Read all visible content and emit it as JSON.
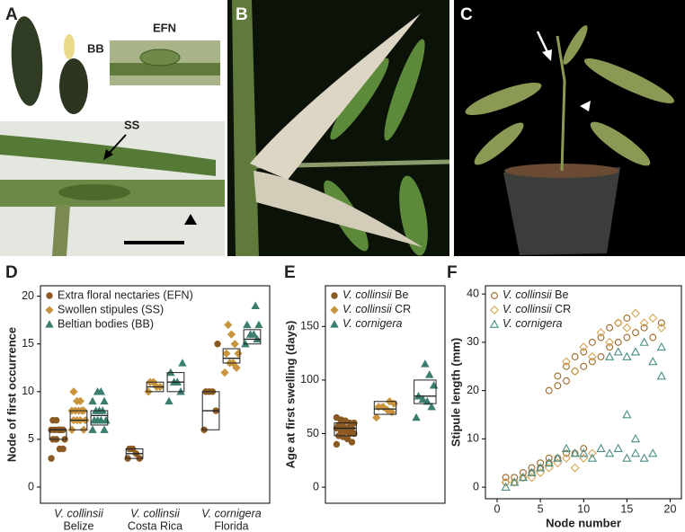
{
  "photos": {
    "A": {
      "letter": "A",
      "bb": "BB",
      "efn": "EFN",
      "ss": "SS"
    },
    "B": {
      "letter": "B"
    },
    "C": {
      "letter": "C"
    }
  },
  "chart_data": [
    {
      "panel": "D",
      "type": "box",
      "ylabel": "Node of first occurrence",
      "categories": [
        "V. collinsii",
        "V. collinsii",
        "V. cornigera"
      ],
      "subcategories": [
        "Belize",
        "Costa Rica",
        "Florida"
      ],
      "ylim": [
        -1.7,
        21.1
      ],
      "yticks": [
        0,
        5,
        10,
        15,
        20
      ],
      "legend": "upper left",
      "series": [
        {
          "name": "Extra floral nectaries (EFN)",
          "color": "#8a5a22",
          "marker": "circle",
          "filled": true,
          "values": [
            [
              3,
              4,
              4,
              5,
              5,
              5,
              6,
              6,
              6,
              6,
              6,
              6,
              7,
              7
            ],
            [
              3,
              3,
              3.5,
              4,
              4
            ],
            [
              6,
              8,
              10,
              10,
              10,
              15
            ]
          ],
          "boxes": [
            [
              5,
              6,
              6
            ],
            [
              3,
              3.5,
              4
            ],
            [
              6,
              8,
              10
            ]
          ]
        },
        {
          "name": "Swollen stipules (SS)",
          "color": "#c8943c",
          "marker": "diamond",
          "filled": true,
          "values": [
            [
              6,
              6,
              7,
              7,
              7,
              7,
              8,
              8,
              8,
              8,
              8,
              9,
              9,
              10
            ],
            [
              10,
              10.5,
              10.5,
              11,
              11
            ],
            [
              12,
              12.5,
              13,
              13,
              14,
              14,
              15,
              16,
              17
            ]
          ],
          "boxes": [
            [
              6,
              7,
              8
            ],
            [
              10,
              10.5,
              11
            ],
            [
              13,
              13.5,
              14.5
            ]
          ]
        },
        {
          "name": "Beltian bodies (BB)",
          "color": "#3b7e70",
          "marker": "triangle",
          "filled": true,
          "values": [
            [
              6,
              6,
              7,
              7,
              7,
              7,
              8,
              8,
              8,
              9,
              9,
              10,
              10
            ],
            [
              9,
              10,
              11,
              11,
              12,
              13
            ],
            [
              15,
              15.5,
              16,
              16,
              17,
              17,
              19
            ]
          ],
          "boxes": [
            [
              6.5,
              7.5,
              8
            ],
            [
              10,
              11,
              12
            ],
            [
              15,
              15.5,
              16.5
            ]
          ]
        }
      ]
    },
    {
      "panel": "E",
      "type": "box",
      "ylabel": "Age at first swelling (days)",
      "ylim": [
        -15,
        188
      ],
      "yticks": [
        0,
        50,
        100,
        150
      ],
      "legend": "upper left",
      "series": [
        {
          "name": "V. collinsii Be",
          "color": "#8a5a22",
          "marker": "circle",
          "filled": true,
          "values": [
            40,
            42,
            45,
            47,
            48,
            50,
            50,
            52,
            53,
            55,
            55,
            55,
            57,
            58,
            60,
            60,
            62,
            63,
            65
          ],
          "box": [
            48,
            55,
            60
          ]
        },
        {
          "name": "V. collinsii CR",
          "color": "#c8943c",
          "marker": "diamond",
          "filled": true,
          "values": [
            65,
            70,
            72,
            75,
            75,
            78,
            80
          ],
          "box": [
            68,
            73,
            80
          ]
        },
        {
          "name": "V. cornigera",
          "color": "#3b7e70",
          "marker": "triangle",
          "filled": true,
          "values": [
            65,
            75,
            80,
            82,
            85,
            95,
            105,
            115
          ],
          "box": [
            78,
            85,
            100
          ]
        }
      ]
    },
    {
      "panel": "F",
      "type": "scatter",
      "xlabel": "Node number",
      "ylabel": "Stipule length (mm)",
      "xlim": [
        -1.35,
        21.3
      ],
      "xticks": [
        0,
        5,
        10,
        15,
        20
      ],
      "ylim": [
        -2.4,
        41.7
      ],
      "yticks": [
        0,
        10,
        20,
        30,
        40
      ],
      "legend": "upper left",
      "series": [
        {
          "name": "V. collinsii Be",
          "color": "#9a6a2a",
          "marker": "circle",
          "filled": false,
          "x": [
            1,
            1,
            2,
            2,
            3,
            3,
            4,
            4,
            5,
            5,
            6,
            6,
            7,
            8,
            9,
            10,
            6,
            7,
            7,
            8,
            8,
            9,
            9,
            10,
            10,
            11,
            11,
            12,
            12,
            13,
            13,
            14,
            14,
            15,
            15,
            16,
            17,
            18,
            19
          ],
          "y": [
            1,
            2,
            1,
            2,
            2,
            3,
            3,
            4,
            4,
            5,
            5,
            6,
            6,
            7,
            7,
            8,
            20,
            21,
            23,
            22,
            25,
            24,
            27,
            25,
            28,
            26,
            30,
            27,
            31,
            29,
            33,
            30,
            34,
            31,
            35,
            32,
            33,
            31,
            34
          ]
        },
        {
          "name": "V. collinsii CR",
          "color": "#d6a656",
          "marker": "diamond",
          "filled": false,
          "x": [
            1,
            2,
            3,
            4,
            5,
            6,
            7,
            8,
            9,
            10,
            11,
            8,
            9,
            10,
            11,
            12,
            13,
            14,
            15,
            16,
            17,
            18,
            19
          ],
          "y": [
            1,
            1,
            2,
            2,
            3,
            4,
            5,
            6,
            4,
            6,
            7,
            26,
            24,
            29,
            27,
            32,
            30,
            34,
            33,
            36,
            34,
            35,
            33
          ]
        },
        {
          "name": "V. cornigera",
          "color": "#4a8f86",
          "marker": "triangle",
          "filled": false,
          "x": [
            1,
            2,
            3,
            4,
            5,
            6,
            7,
            8,
            9,
            10,
            11,
            12,
            13,
            14,
            15,
            16,
            17,
            18,
            13,
            14,
            15,
            15,
            16,
            17,
            18,
            19,
            19,
            16
          ],
          "y": [
            0,
            1,
            2,
            3,
            4,
            5,
            6,
            8,
            7,
            7,
            6,
            8,
            7,
            8,
            6,
            7,
            6,
            7,
            27,
            28,
            15,
            27,
            28,
            30,
            26,
            23,
            29,
            10
          ]
        }
      ]
    }
  ]
}
